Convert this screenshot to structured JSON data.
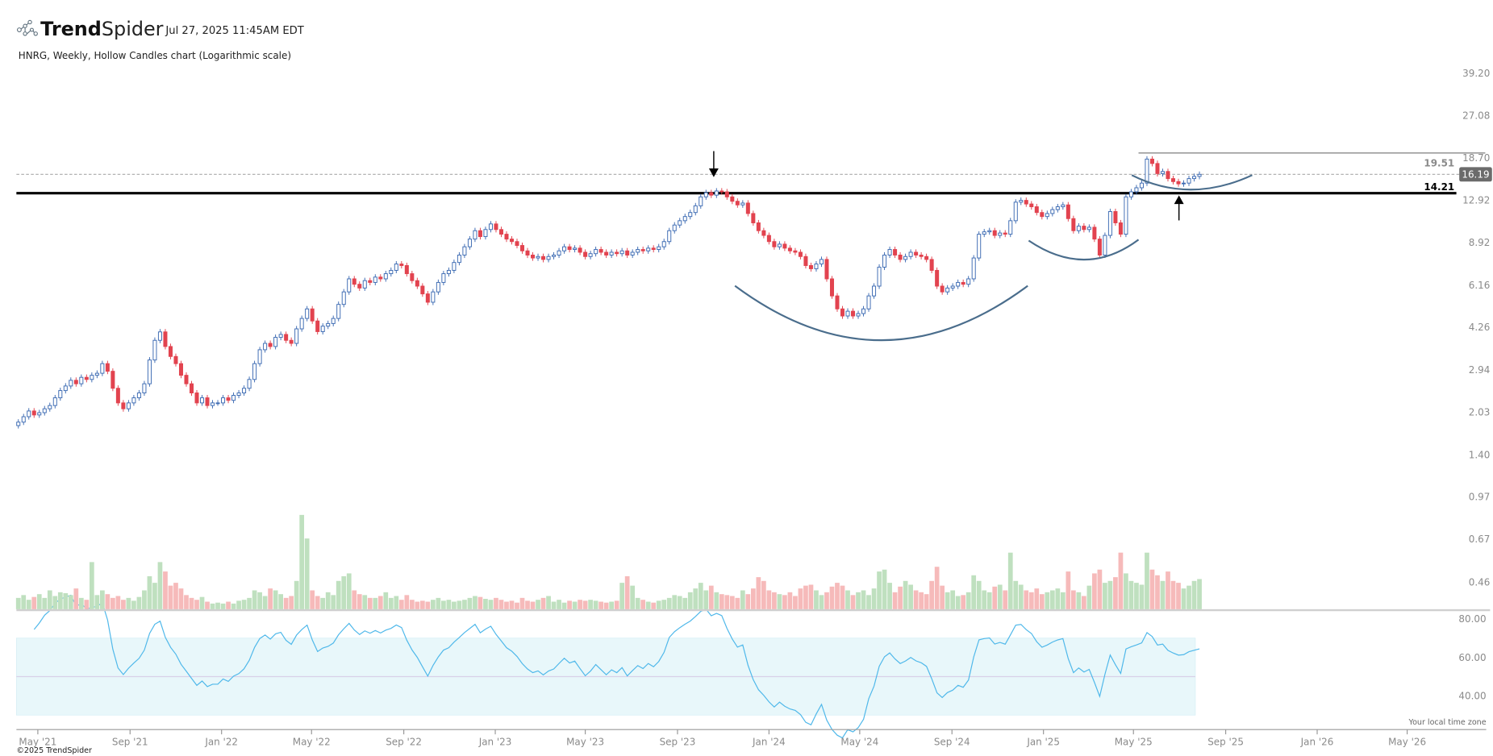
{
  "header": {
    "brand_bold": "Trend",
    "brand_light": "Spider",
    "timestamp": "Jul 27, 2025 11:45AM EDT",
    "subtitle": "HNRG, Weekly, Hollow Candles chart (Logarithmic scale)"
  },
  "footer": {
    "copyright": "©2025 TrendSpider",
    "timezone_note": "Your local time zone"
  },
  "colors": {
    "up_candle": "#3d6bb3",
    "down_candle": "#e2434f",
    "volume_up": "#bfe0bf",
    "volume_down": "#f6baba",
    "rsi_line": "#4fb8ea",
    "rsi_band": "#e8f7fa",
    "pattern_curve": "#4a6d8c"
  },
  "chart_data": {
    "type": "candlestick",
    "symbol": "HNRG",
    "interval": "weekly",
    "scale": "log",
    "first_week": "2021-04-05",
    "price_axis_labels": [
      "39.20",
      "27.08",
      "18.70",
      "12.92",
      "8.92",
      "6.16",
      "4.26",
      "2.94",
      "2.03",
      "1.40",
      "0.97",
      "0.67",
      "0.46"
    ],
    "rsi_axis_labels": [
      "80.00",
      "60.00",
      "40.00"
    ],
    "rsi_band": [
      30,
      70
    ],
    "rsi_period": 14,
    "time_axis": [
      {
        "label": "May '21",
        "date": "2021-05-01"
      },
      {
        "label": "Sep '21",
        "date": "2021-09-01"
      },
      {
        "label": "Jan '22",
        "date": "2022-01-01"
      },
      {
        "label": "May '22",
        "date": "2022-05-01"
      },
      {
        "label": "Sep '22",
        "date": "2022-09-01"
      },
      {
        "label": "Jan '23",
        "date": "2023-01-01"
      },
      {
        "label": "May '23",
        "date": "2023-05-01"
      },
      {
        "label": "Sep '23",
        "date": "2023-09-01"
      },
      {
        "label": "Jan '24",
        "date": "2024-01-01"
      },
      {
        "label": "May '24",
        "date": "2024-05-01"
      },
      {
        "label": "Sep '24",
        "date": "2024-09-01"
      },
      {
        "label": "Jan '25",
        "date": "2025-01-01"
      },
      {
        "label": "May '25",
        "date": "2025-05-01"
      },
      {
        "label": "Sep '25",
        "date": "2025-09-01"
      },
      {
        "label": "Jan '26",
        "date": "2026-01-01"
      },
      {
        "label": "May '26",
        "date": "2026-05-01"
      }
    ],
    "levels": {
      "resistance": {
        "value": 14.21,
        "label": "14.21"
      },
      "high": {
        "value": 19.51,
        "label": "19.51"
      },
      "last": {
        "value": 16.19,
        "label": "16.19"
      }
    },
    "closes": [
      1.86,
      1.95,
      2.05,
      1.98,
      2.02,
      2.09,
      2.15,
      2.3,
      2.45,
      2.55,
      2.68,
      2.6,
      2.75,
      2.7,
      2.8,
      2.85,
      3.1,
      2.9,
      2.5,
      2.2,
      2.09,
      2.2,
      2.3,
      2.4,
      2.6,
      3.2,
      3.8,
      4.09,
      3.6,
      3.3,
      3.1,
      2.8,
      2.6,
      2.4,
      2.2,
      2.3,
      2.15,
      2.2,
      2.2,
      2.3,
      2.25,
      2.35,
      2.4,
      2.5,
      2.7,
      3.1,
      3.5,
      3.7,
      3.6,
      3.9,
      4.0,
      3.8,
      3.7,
      4.2,
      4.6,
      5.0,
      4.5,
      4.1,
      4.3,
      4.4,
      4.6,
      5.2,
      5.8,
      6.5,
      6.2,
      6.0,
      6.4,
      6.3,
      6.6,
      6.5,
      6.8,
      7.0,
      7.4,
      7.3,
      6.8,
      6.4,
      6.1,
      5.7,
      5.3,
      5.8,
      6.3,
      6.8,
      7.0,
      7.5,
      8.0,
      8.6,
      9.2,
      9.9,
      9.4,
      10.0,
      10.5,
      10.0,
      9.6,
      9.2,
      9.0,
      8.7,
      8.3,
      8.0,
      7.8,
      7.9,
      7.7,
      7.9,
      8.0,
      8.3,
      8.6,
      8.4,
      8.5,
      8.2,
      7.9,
      8.1,
      8.4,
      8.2,
      8.0,
      8.2,
      8.1,
      8.3,
      8.0,
      8.2,
      8.4,
      8.3,
      8.5,
      8.4,
      8.6,
      9.0,
      9.9,
      10.4,
      10.8,
      11.2,
      11.6,
      12.3,
      13.3,
      13.8,
      13.5,
      14.0,
      13.9,
      13.3,
      12.8,
      12.4,
      12.6,
      11.5,
      10.6,
      9.9,
      9.5,
      9.0,
      8.6,
      8.8,
      8.5,
      8.3,
      8.2,
      7.9,
      7.3,
      7.1,
      7.4,
      7.7,
      6.5,
      5.6,
      5.0,
      4.7,
      4.9,
      4.7,
      4.8,
      5.0,
      5.6,
      6.1,
      7.2,
      8.0,
      8.4,
      8.0,
      7.7,
      7.9,
      8.2,
      8.0,
      7.9,
      7.7,
      7.0,
      6.1,
      5.8,
      6.0,
      6.1,
      6.3,
      6.2,
      6.5,
      7.8,
      9.6,
      9.8,
      9.9,
      9.5,
      9.7,
      9.6,
      10.8,
      12.7,
      12.9,
      12.5,
      12.2,
      11.6,
      11.2,
      11.5,
      11.9,
      12.2,
      12.4,
      11.0,
      9.9,
      10.3,
      10.0,
      10.2,
      9.2,
      8.0,
      9.5,
      11.7,
      10.6,
      9.6,
      13.3,
      13.9,
      14.4,
      15.0,
      18.5,
      17.8,
      16.3,
      16.6,
      15.6,
      15.2,
      14.9,
      15.0,
      15.6,
      15.9,
      16.19
    ],
    "volume_relative": [
      0.12,
      0.15,
      0.1,
      0.13,
      0.16,
      0.12,
      0.2,
      0.14,
      0.18,
      0.17,
      0.15,
      0.22,
      0.12,
      0.1,
      0.5,
      0.15,
      0.2,
      0.16,
      0.12,
      0.14,
      0.1,
      0.12,
      0.09,
      0.13,
      0.2,
      0.35,
      0.28,
      0.5,
      0.4,
      0.25,
      0.28,
      0.22,
      0.15,
      0.12,
      0.1,
      0.13,
      0.08,
      0.06,
      0.07,
      0.06,
      0.08,
      0.06,
      0.09,
      0.1,
      0.12,
      0.2,
      0.18,
      0.14,
      0.22,
      0.2,
      0.16,
      0.12,
      0.14,
      0.3,
      1.0,
      0.75,
      0.2,
      0.14,
      0.12,
      0.18,
      0.15,
      0.3,
      0.35,
      0.38,
      0.2,
      0.16,
      0.15,
      0.12,
      0.12,
      0.14,
      0.18,
      0.12,
      0.14,
      0.1,
      0.15,
      0.1,
      0.08,
      0.09,
      0.08,
      0.1,
      0.12,
      0.09,
      0.1,
      0.08,
      0.09,
      0.1,
      0.12,
      0.14,
      0.13,
      0.11,
      0.1,
      0.12,
      0.1,
      0.08,
      0.09,
      0.07,
      0.12,
      0.09,
      0.08,
      0.1,
      0.12,
      0.14,
      0.08,
      0.1,
      0.07,
      0.09,
      0.08,
      0.1,
      0.09,
      0.1,
      0.09,
      0.08,
      0.07,
      0.08,
      0.09,
      0.28,
      0.35,
      0.25,
      0.12,
      0.1,
      0.08,
      0.07,
      0.09,
      0.1,
      0.12,
      0.15,
      0.14,
      0.12,
      0.18,
      0.22,
      0.28,
      0.2,
      0.25,
      0.18,
      0.16,
      0.15,
      0.14,
      0.12,
      0.2,
      0.16,
      0.22,
      0.34,
      0.3,
      0.2,
      0.18,
      0.16,
      0.15,
      0.18,
      0.14,
      0.22,
      0.25,
      0.26,
      0.2,
      0.15,
      0.18,
      0.24,
      0.28,
      0.25,
      0.2,
      0.15,
      0.18,
      0.2,
      0.15,
      0.22,
      0.4,
      0.42,
      0.28,
      0.18,
      0.24,
      0.3,
      0.26,
      0.2,
      0.18,
      0.16,
      0.3,
      0.45,
      0.25,
      0.18,
      0.2,
      0.14,
      0.15,
      0.18,
      0.36,
      0.3,
      0.2,
      0.18,
      0.24,
      0.26,
      0.2,
      0.6,
      0.3,
      0.26,
      0.2,
      0.18,
      0.22,
      0.16,
      0.18,
      0.2,
      0.22,
      0.18,
      0.4,
      0.2,
      0.18,
      0.14,
      0.25,
      0.38,
      0.42,
      0.28,
      0.3,
      0.34,
      0.6,
      0.38,
      0.3,
      0.28,
      0.26,
      0.6,
      0.42,
      0.36,
      0.3,
      0.4,
      0.3,
      0.28,
      0.22,
      0.25,
      0.3,
      0.32
    ]
  }
}
